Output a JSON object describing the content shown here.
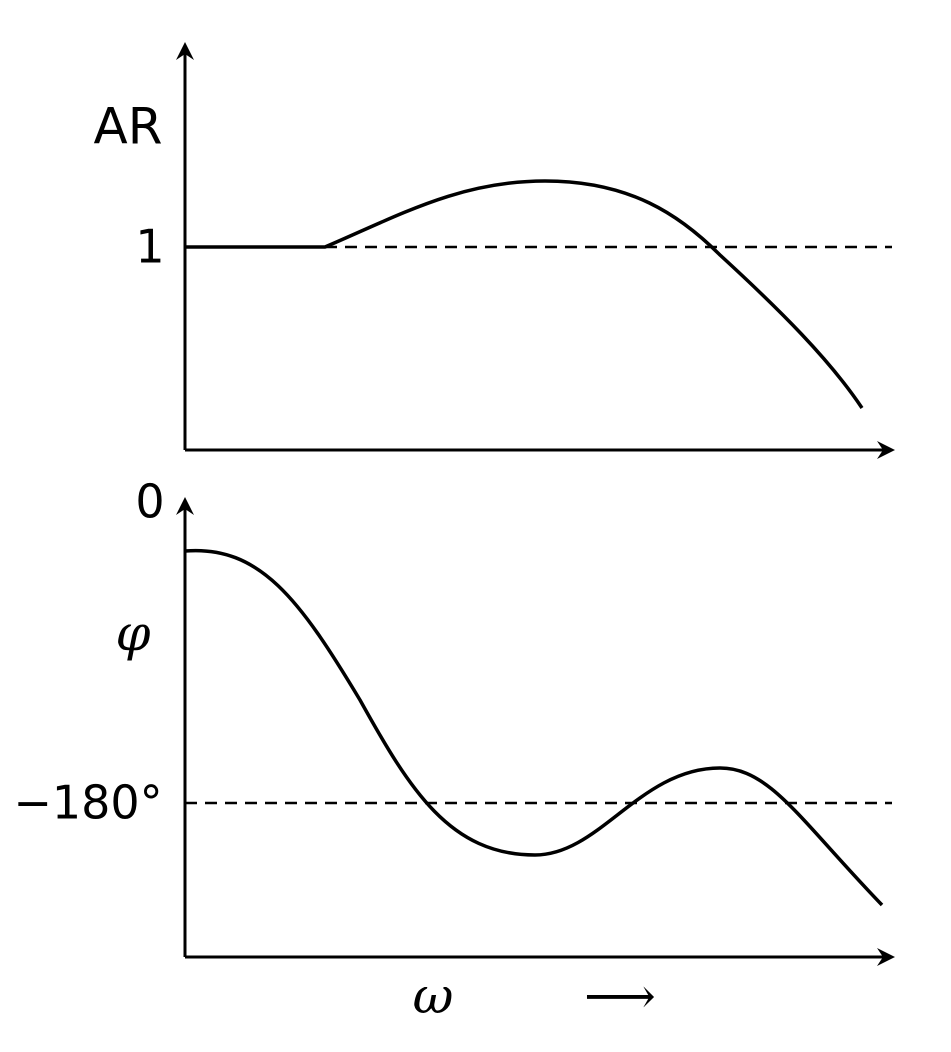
{
  "top_plot": {
    "y_label": "AR",
    "reference_label": "1"
  },
  "bottom_plot": {
    "top_label": "0",
    "y_label": "φ",
    "reference_label": "−180°"
  },
  "x_axis": {
    "label": "ω",
    "direction_arrow": "⟶"
  }
}
